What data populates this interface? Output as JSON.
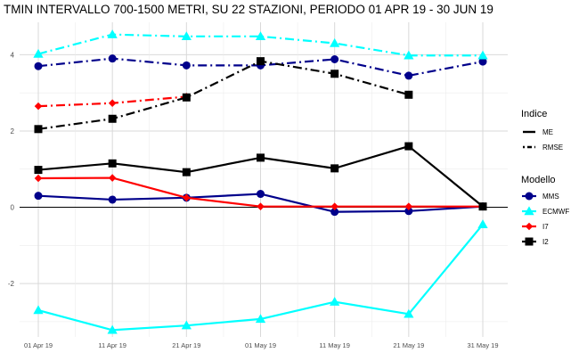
{
  "chart_data": {
    "type": "line",
    "title": "TMIN INTERVALLO 700-1500 METRI, SU 22 STAZIONI, PERIODO 01 APR 19  -  30 JUN 19",
    "xlabel": "",
    "ylabel": "",
    "x": [
      "01 Apr 19",
      "11 Apr 19",
      "21 Apr 19",
      "01 May 19",
      "11 May 19",
      "21 May 19",
      "31 May 19"
    ],
    "ylim": [
      -3.4,
      4.85
    ],
    "yticks": [
      -2,
      0,
      2,
      4
    ],
    "ytick_labels": [
      "-2",
      "0",
      "2",
      "4"
    ],
    "grid": true,
    "zero_line": true,
    "legend_placement": "right",
    "legend_indice": {
      "title": "Indice",
      "entries": [
        {
          "label": "ME",
          "style": "solid"
        },
        {
          "label": "RMSE",
          "style": "dotdash"
        }
      ]
    },
    "legend_modello": {
      "title": "Modello",
      "entries": [
        {
          "label": "MMS",
          "color": "#00008B",
          "marker": "circle"
        },
        {
          "label": "ECMWF",
          "color": "#00FFFF",
          "marker": "triangle"
        },
        {
          "label": "I7",
          "color": "#FF0000",
          "marker": "diamond"
        },
        {
          "label": "I2",
          "color": "#000000",
          "marker": "square"
        }
      ]
    },
    "series": [
      {
        "name": "MMS",
        "indice": "ME",
        "color": "#00008B",
        "marker": "circle",
        "values": [
          0.3,
          0.2,
          0.25,
          0.35,
          -0.12,
          -0.1,
          0.02
        ]
      },
      {
        "name": "MMS",
        "indice": "RMSE",
        "color": "#00008B",
        "marker": "circle",
        "values": [
          3.7,
          3.9,
          3.72,
          3.72,
          3.88,
          3.45,
          3.82
        ]
      },
      {
        "name": "ECMWF",
        "indice": "ME",
        "color": "#00FFFF",
        "marker": "triangle",
        "values": [
          -2.7,
          -3.22,
          -3.1,
          -2.93,
          -2.48,
          -2.8,
          -0.45
        ]
      },
      {
        "name": "ECMWF",
        "indice": "RMSE",
        "color": "#00FFFF",
        "marker": "triangle",
        "values": [
          4.02,
          4.53,
          4.48,
          4.48,
          4.3,
          3.98,
          3.98
        ]
      },
      {
        "name": "I7",
        "indice": "ME",
        "color": "#FF0000",
        "marker": "diamond",
        "values": [
          0.76,
          0.77,
          0.25,
          0.02,
          0.02,
          0.02,
          0.02
        ]
      },
      {
        "name": "I7",
        "indice": "RMSE",
        "color": "#FF0000",
        "marker": "diamond",
        "values": [
          2.65,
          2.73,
          2.9,
          null,
          null,
          null,
          null
        ]
      },
      {
        "name": "I2",
        "indice": "ME",
        "color": "#000000",
        "marker": "square",
        "values": [
          0.98,
          1.15,
          0.92,
          1.3,
          1.02,
          1.6,
          0.02
        ]
      },
      {
        "name": "I2",
        "indice": "RMSE",
        "color": "#000000",
        "marker": "square",
        "values": [
          2.05,
          2.32,
          2.88,
          3.83,
          3.5,
          2.95,
          null
        ]
      }
    ]
  }
}
